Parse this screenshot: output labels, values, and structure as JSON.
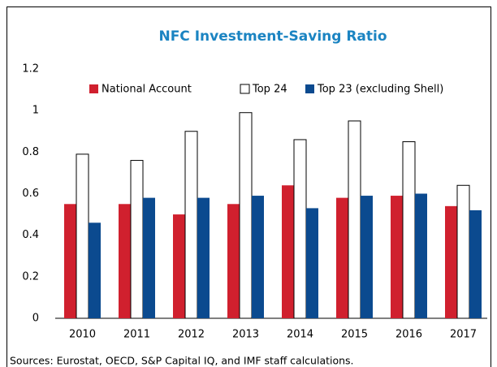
{
  "chart_data": {
    "type": "bar",
    "title": "NFC Investment-Saving Ratio",
    "categories": [
      "2010",
      "2011",
      "2012",
      "2013",
      "2014",
      "2015",
      "2016",
      "2017"
    ],
    "series": [
      {
        "name": "National Account",
        "color": "#d0202e",
        "values": [
          0.55,
          0.55,
          0.5,
          0.55,
          0.64,
          0.58,
          0.59,
          0.54
        ]
      },
      {
        "name": "Top 24",
        "color": "#ffffff",
        "values": [
          0.79,
          0.76,
          0.9,
          0.99,
          0.86,
          0.95,
          0.85,
          0.64
        ]
      },
      {
        "name": "Top 23 (excluding Shell)",
        "color": "#0b4a8f",
        "values": [
          0.46,
          0.58,
          0.58,
          0.59,
          0.53,
          0.59,
          0.6,
          0.52
        ]
      }
    ],
    "ylim": [
      0,
      1.2
    ],
    "yticks": [
      0,
      0.2,
      0.4,
      0.6,
      0.8,
      1,
      1.2
    ],
    "legend": "top",
    "note": "Sources: Eurostat, OECD, S&P Capital IQ, and IMF staff calculations."
  }
}
